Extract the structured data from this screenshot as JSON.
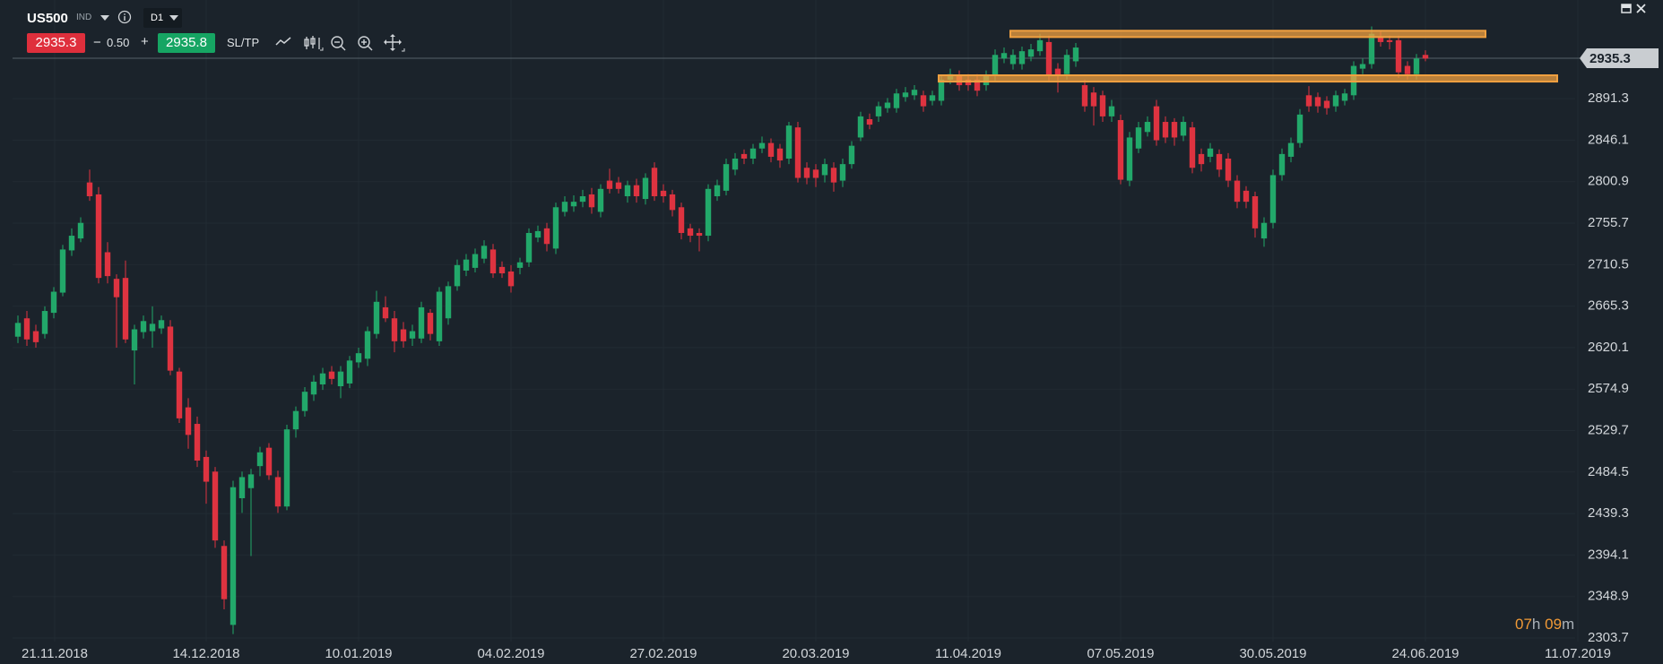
{
  "header": {
    "symbol": "US500",
    "instrument_type": "IND",
    "timeframe": "D1",
    "sell_price": "2935.3",
    "minus": "−",
    "change": "0.50",
    "plus": "+",
    "buy_price": "2935.8",
    "sltp": "SL/TP"
  },
  "timer": {
    "hours": "07",
    "hours_unit": "h",
    "minutes": "09",
    "minutes_unit": "m"
  },
  "chart_data": {
    "type": "candlestick",
    "up_color": "#22a86a",
    "down_color": "#de3340",
    "zone_color": "#f0a040",
    "grid": true,
    "xlim": [
      -0.6,
      174
    ],
    "ylim": [
      2299.8,
      2998.8
    ],
    "xticks": [
      {
        "value": 4.1,
        "label": "21.11.2018"
      },
      {
        "value": 21,
        "label": "14.12.2018"
      },
      {
        "value": 38,
        "label": "10.01.2019"
      },
      {
        "value": 55,
        "label": "04.02.2019"
      },
      {
        "value": 72,
        "label": "27.02.2019"
      },
      {
        "value": 89,
        "label": "20.03.2019"
      },
      {
        "value": 106,
        "label": "11.04.2019"
      },
      {
        "value": 123,
        "label": "07.05.2019"
      },
      {
        "value": 140,
        "label": "30.05.2019"
      },
      {
        "value": 157,
        "label": "24.06.2019"
      },
      {
        "value": 174,
        "label": "11.07.2019"
      }
    ],
    "yticks": [
      2303.7,
      2348.9,
      2394.1,
      2439.3,
      2484.5,
      2529.7,
      2574.9,
      2620.1,
      2665.3,
      2710.5,
      2755.7,
      2800.9,
      2846.1,
      2891.3
    ],
    "last_price": 2935.3,
    "zones": [
      {
        "x": [
          110.7,
          163.7
        ],
        "y": [
          2958.4,
          2965.3
        ]
      },
      {
        "x": [
          102.7,
          171.7
        ],
        "y": [
          2909.9,
          2916.8
        ]
      }
    ],
    "candles": [
      [
        2632,
        2655,
        2625,
        2647
      ],
      [
        2652,
        2660,
        2622,
        2629
      ],
      [
        2638,
        2645,
        2620,
        2626
      ],
      [
        2635,
        2665,
        2630,
        2660
      ],
      [
        2658,
        2686,
        2652,
        2681
      ],
      [
        2680,
        2732,
        2676,
        2727
      ],
      [
        2726,
        2750,
        2720,
        2742
      ],
      [
        2739,
        2762,
        2735,
        2756
      ],
      [
        2800,
        2814,
        2780,
        2785
      ],
      [
        2787,
        2795,
        2690,
        2696
      ],
      [
        2724,
        2735,
        2690,
        2698
      ],
      [
        2695,
        2700,
        2620,
        2675
      ],
      [
        2696,
        2715,
        2625,
        2629
      ],
      [
        2617,
        2645,
        2580,
        2640
      ],
      [
        2637,
        2655,
        2630,
        2649
      ],
      [
        2638,
        2665,
        2620,
        2646
      ],
      [
        2641,
        2655,
        2635,
        2650
      ],
      [
        2643,
        2650,
        2590,
        2595
      ],
      [
        2594,
        2598,
        2538,
        2543
      ],
      [
        2555,
        2565,
        2510,
        2525
      ],
      [
        2537,
        2545,
        2490,
        2497
      ],
      [
        2501,
        2508,
        2450,
        2474
      ],
      [
        2485,
        2490,
        2402,
        2410
      ],
      [
        2404,
        2410,
        2335,
        2346
      ],
      [
        2318,
        2475,
        2308,
        2468
      ],
      [
        2456,
        2485,
        2440,
        2479
      ],
      [
        2467,
        2488,
        2393,
        2482
      ],
      [
        2491,
        2512,
        2480,
        2506
      ],
      [
        2511,
        2516,
        2476,
        2481
      ],
      [
        2479,
        2486,
        2440,
        2447
      ],
      [
        2447,
        2536,
        2443,
        2531
      ],
      [
        2531,
        2556,
        2522,
        2551
      ],
      [
        2551,
        2577,
        2545,
        2572
      ],
      [
        2569,
        2590,
        2562,
        2583
      ],
      [
        2580,
        2598,
        2574,
        2592
      ],
      [
        2594,
        2600,
        2580,
        2586
      ],
      [
        2578,
        2600,
        2565,
        2594
      ],
      [
        2581,
        2611,
        2576,
        2606
      ],
      [
        2604,
        2620,
        2598,
        2614
      ],
      [
        2608,
        2643,
        2600,
        2638
      ],
      [
        2635,
        2682,
        2630,
        2670
      ],
      [
        2664,
        2676,
        2648,
        2652
      ],
      [
        2652,
        2660,
        2615,
        2627
      ],
      [
        2640,
        2648,
        2620,
        2627
      ],
      [
        2630,
        2645,
        2622,
        2638
      ],
      [
        2630,
        2670,
        2625,
        2664
      ],
      [
        2658,
        2662,
        2628,
        2635
      ],
      [
        2627,
        2686,
        2622,
        2681
      ],
      [
        2652,
        2692,
        2645,
        2687
      ],
      [
        2687,
        2716,
        2682,
        2710
      ],
      [
        2704,
        2722,
        2698,
        2716
      ],
      [
        2707,
        2728,
        2702,
        2722
      ],
      [
        2717,
        2737,
        2712,
        2731
      ],
      [
        2727,
        2733,
        2696,
        2701
      ],
      [
        2708,
        2714,
        2696,
        2701
      ],
      [
        2703,
        2710,
        2680,
        2687
      ],
      [
        2707,
        2718,
        2700,
        2713
      ],
      [
        2713,
        2750,
        2708,
        2745
      ],
      [
        2740,
        2753,
        2735,
        2747
      ],
      [
        2750,
        2756,
        2725,
        2733
      ],
      [
        2728,
        2778,
        2722,
        2773
      ],
      [
        2768,
        2785,
        2763,
        2779
      ],
      [
        2774,
        2786,
        2768,
        2779
      ],
      [
        2779,
        2792,
        2773,
        2785
      ],
      [
        2787,
        2794,
        2766,
        2773
      ],
      [
        2768,
        2798,
        2762,
        2793
      ],
      [
        2802,
        2815,
        2788,
        2793
      ],
      [
        2800,
        2806,
        2788,
        2793
      ],
      [
        2785,
        2802,
        2778,
        2797
      ],
      [
        2797,
        2804,
        2778,
        2785
      ],
      [
        2782,
        2810,
        2776,
        2805
      ],
      [
        2816,
        2822,
        2780,
        2785
      ],
      [
        2791,
        2798,
        2778,
        2785
      ],
      [
        2787,
        2792,
        2763,
        2770
      ],
      [
        2773,
        2778,
        2738,
        2745
      ],
      [
        2750,
        2755,
        2735,
        2742
      ],
      [
        2745,
        2750,
        2725,
        2742
      ],
      [
        2742,
        2798,
        2736,
        2793
      ],
      [
        2785,
        2803,
        2780,
        2797
      ],
      [
        2791,
        2826,
        2786,
        2820
      ],
      [
        2814,
        2832,
        2808,
        2826
      ],
      [
        2831,
        2836,
        2820,
        2826
      ],
      [
        2826,
        2842,
        2820,
        2837
      ],
      [
        2837,
        2850,
        2832,
        2843
      ],
      [
        2843,
        2848,
        2822,
        2828
      ],
      [
        2837,
        2842,
        2816,
        2824
      ],
      [
        2826,
        2866,
        2820,
        2862
      ],
      [
        2860,
        2866,
        2800,
        2805
      ],
      [
        2816,
        2822,
        2798,
        2805
      ],
      [
        2814,
        2820,
        2795,
        2805
      ],
      [
        2808,
        2826,
        2800,
        2820
      ],
      [
        2816,
        2822,
        2790,
        2800
      ],
      [
        2802,
        2826,
        2795,
        2820
      ],
      [
        2820,
        2845,
        2815,
        2840
      ],
      [
        2849,
        2877,
        2845,
        2872
      ],
      [
        2869,
        2875,
        2858,
        2863
      ],
      [
        2872,
        2888,
        2866,
        2883
      ],
      [
        2881,
        2892,
        2876,
        2887
      ],
      [
        2881,
        2902,
        2876,
        2897
      ],
      [
        2893,
        2904,
        2888,
        2898
      ],
      [
        2895,
        2906,
        2890,
        2901
      ],
      [
        2895,
        2900,
        2877,
        2883
      ],
      [
        2889,
        2900,
        2884,
        2895
      ],
      [
        2889,
        2917,
        2884,
        2912
      ],
      [
        2912,
        2924,
        2907,
        2918
      ],
      [
        2916,
        2922,
        2900,
        2906
      ],
      [
        2912,
        2918,
        2900,
        2906
      ],
      [
        2912,
        2918,
        2894,
        2900
      ],
      [
        2906,
        2922,
        2900,
        2916
      ],
      [
        2916,
        2945,
        2910,
        2939
      ],
      [
        2935,
        2947,
        2930,
        2941
      ],
      [
        2929,
        2945,
        2923,
        2939
      ],
      [
        2929,
        2948,
        2923,
        2943
      ],
      [
        2937,
        2951,
        2932,
        2945
      ],
      [
        2943,
        2962,
        2938,
        2955
      ],
      [
        2953,
        2960,
        2910,
        2916
      ],
      [
        2924,
        2930,
        2898,
        2916
      ],
      [
        2918,
        2945,
        2912,
        2939
      ],
      [
        2932,
        2952,
        2926,
        2947
      ],
      [
        2906,
        2912,
        2877,
        2883
      ],
      [
        2898,
        2904,
        2862,
        2883
      ],
      [
        2895,
        2900,
        2866,
        2872
      ],
      [
        2872,
        2890,
        2866,
        2883
      ],
      [
        2868,
        2874,
        2798,
        2803
      ],
      [
        2802,
        2855,
        2796,
        2849
      ],
      [
        2837,
        2866,
        2832,
        2860
      ],
      [
        2855,
        2872,
        2850,
        2866
      ],
      [
        2883,
        2890,
        2840,
        2846
      ],
      [
        2866,
        2872,
        2843,
        2849
      ],
      [
        2866,
        2870,
        2840,
        2849
      ],
      [
        2851,
        2872,
        2845,
        2866
      ],
      [
        2860,
        2866,
        2810,
        2816
      ],
      [
        2831,
        2837,
        2812,
        2820
      ],
      [
        2828,
        2843,
        2822,
        2837
      ],
      [
        2831,
        2836,
        2806,
        2814
      ],
      [
        2826,
        2832,
        2795,
        2802
      ],
      [
        2802,
        2808,
        2772,
        2779
      ],
      [
        2791,
        2796,
        2772,
        2779
      ],
      [
        2785,
        2790,
        2740,
        2750
      ],
      [
        2739,
        2762,
        2730,
        2756
      ],
      [
        2756,
        2814,
        2750,
        2808
      ],
      [
        2808,
        2837,
        2802,
        2831
      ],
      [
        2828,
        2849,
        2822,
        2843
      ],
      [
        2843,
        2880,
        2838,
        2874
      ],
      [
        2895,
        2905,
        2877,
        2883
      ],
      [
        2893,
        2898,
        2876,
        2883
      ],
      [
        2889,
        2894,
        2874,
        2881
      ],
      [
        2883,
        2900,
        2877,
        2895
      ],
      [
        2889,
        2902,
        2884,
        2897
      ],
      [
        2895,
        2932,
        2890,
        2927
      ],
      [
        2924,
        2935,
        2918,
        2929
      ],
      [
        2929,
        2970,
        2924,
        2962
      ],
      [
        2958,
        2966,
        2948,
        2953
      ],
      [
        2955,
        2960,
        2945,
        2953
      ],
      [
        2955,
        2960,
        2914,
        2920
      ],
      [
        2927,
        2932,
        2912,
        2918
      ],
      [
        2918,
        2940,
        2912,
        2935
      ],
      [
        2939,
        2944,
        2932,
        2935
      ]
    ]
  }
}
